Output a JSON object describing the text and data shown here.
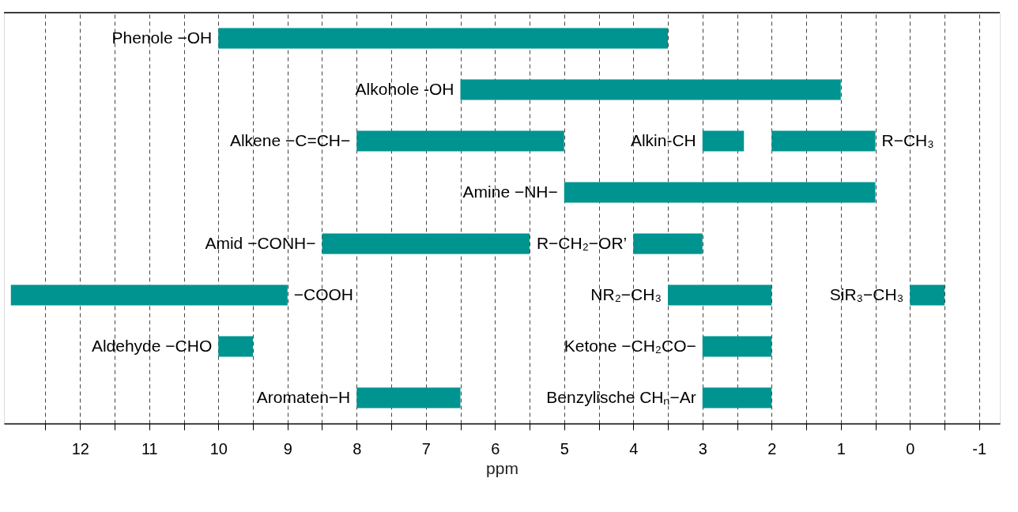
{
  "chart_data": {
    "type": "bar",
    "orientation": "horizontal",
    "xlabel": "ppm",
    "categories": [
      null,
      null,
      null,
      null,
      null,
      null,
      null,
      null
    ],
    "series": [
      {
        "color": "#009490",
        "values": [
          6.5,
          5.5,
          3,
          4.5,
          3,
          4,
          0.5,
          1.5
        ],
        "base": [
          3.5,
          1,
          5,
          0.5,
          5.5,
          9,
          9.5,
          6.5
        ],
        "value_labels": [
          "Phenole −OH",
          "Alkohole -OH",
          "Alkene −C=CH−",
          "Amine −NH−",
          "Amid −CONH−",
          "−COOH",
          "Aldehyde −CHO",
          "Aromaten−H"
        ]
      },
      {
        "color": "#009490",
        "values": [
          null,
          null,
          0.6,
          null,
          1,
          1.5,
          1,
          1
        ],
        "base": [
          null,
          null,
          2.4,
          null,
          3,
          2,
          2,
          2
        ],
        "value_labels": [
          null,
          null,
          "Alkin-CH",
          null,
          "R−CH₂−OR’",
          "NR₂−CH₃",
          "Ketone −CH₂CO−",
          "Benzylische CHₙ−Ar"
        ]
      },
      {
        "color": "#009490",
        "values": [
          null,
          null,
          1.5,
          null,
          null,
          0.5,
          null,
          null
        ],
        "base": [
          null,
          null,
          0.5,
          null,
          null,
          -0.5,
          null,
          null
        ],
        "value_labels": [
          null,
          null,
          "R−CH₃",
          null,
          null,
          "SiR₃−CH₃",
          null,
          null
        ]
      }
    ],
    "xlim": [
      13.1,
      -1.3
    ],
    "xticks": [
      {
        "value": 12.5,
        "label": null
      },
      12,
      {
        "value": 11.5,
        "label": null
      },
      11,
      {
        "value": 10.5,
        "label": null
      },
      10,
      {
        "value": 9.5,
        "label": null
      },
      9,
      {
        "value": 8.5,
        "label": null
      },
      8,
      {
        "value": 7.5,
        "label": null
      },
      7,
      {
        "value": 6.5,
        "label": null
      },
      6,
      {
        "value": 5.5,
        "label": null
      },
      5,
      {
        "value": 4.5,
        "label": null
      },
      4,
      {
        "value": 3.5,
        "label": null
      },
      3,
      {
        "value": 2.5,
        "label": null
      },
      2,
      {
        "value": 1.5,
        "label": null
      },
      1,
      {
        "value": 0.5,
        "label": null
      },
      0,
      {
        "value": -0.5,
        "label": null
      },
      -1
    ],
    "grid": "x"
  }
}
